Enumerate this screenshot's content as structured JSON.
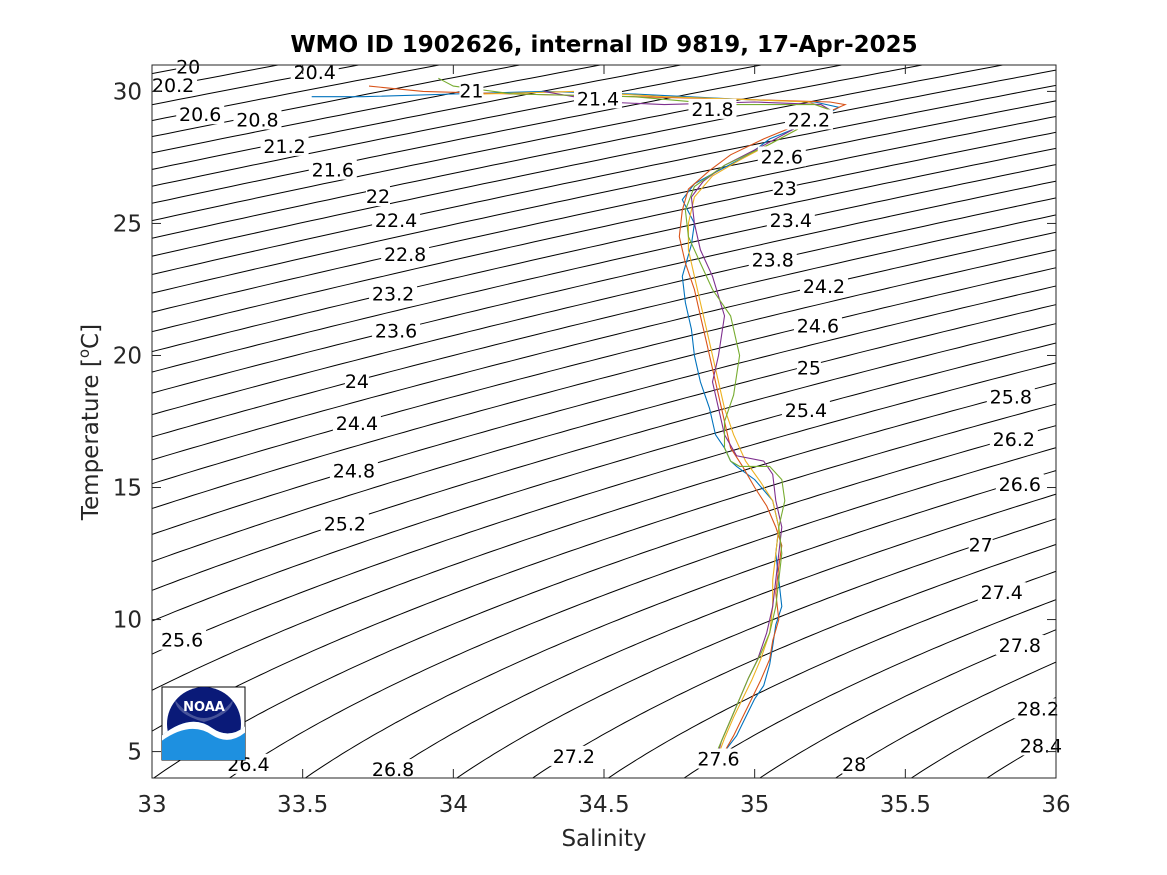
{
  "chart_data": {
    "type": "line",
    "title": "WMO ID 1902626, internal ID 9819, 17-Apr-2025",
    "xlabel": "Salinity",
    "ylabel_main": "Temperature [",
    "ylabel_sup": "o",
    "ylabel_end": "C]",
    "xlim": [
      33,
      36
    ],
    "ylim": [
      4,
      31
    ],
    "xticks": [
      33,
      33.5,
      34,
      34.5,
      35,
      35.5,
      36
    ],
    "xtick_labels": [
      "33",
      "33.5",
      "34",
      "34.5",
      "35",
      "35.5",
      "36"
    ],
    "yticks": [
      5,
      10,
      15,
      20,
      25,
      30
    ],
    "ytick_labels": [
      "5",
      "10",
      "15",
      "20",
      "25",
      "30"
    ],
    "grid": false,
    "logo": {
      "text": "NOAA",
      "colors": {
        "navy": "#0a1a78",
        "light_blue": "#1e90e0",
        "sky": "#23a7f0"
      }
    },
    "density_contours": {
      "levels_start": 20.0,
      "levels_step": 0.2,
      "levels_end": 28.4,
      "color": "#000000",
      "labels": [
        {
          "text": "20",
          "s": 33.12,
          "t": 30.9
        },
        {
          "text": "20.2",
          "s": 33.07,
          "t": 30.2
        },
        {
          "text": "20.4",
          "s": 33.54,
          "t": 30.7
        },
        {
          "text": "20.6",
          "s": 33.16,
          "t": 29.1
        },
        {
          "text": "20.8",
          "s": 33.35,
          "t": 28.9
        },
        {
          "text": "21",
          "s": 34.06,
          "t": 30.0
        },
        {
          "text": "21.2",
          "s": 33.44,
          "t": 27.9
        },
        {
          "text": "21.4",
          "s": 34.48,
          "t": 29.7
        },
        {
          "text": "21.6",
          "s": 33.6,
          "t": 27.0
        },
        {
          "text": "21.8",
          "s": 34.86,
          "t": 29.3
        },
        {
          "text": "22",
          "s": 33.75,
          "t": 26.0
        },
        {
          "text": "22.2",
          "s": 35.18,
          "t": 28.9
        },
        {
          "text": "22.4",
          "s": 33.81,
          "t": 25.1
        },
        {
          "text": "22.6",
          "s": 35.09,
          "t": 27.5
        },
        {
          "text": "22.8",
          "s": 33.84,
          "t": 23.8
        },
        {
          "text": "23",
          "s": 35.1,
          "t": 26.3
        },
        {
          "text": "23.2",
          "s": 33.8,
          "t": 22.3
        },
        {
          "text": "23.4",
          "s": 35.12,
          "t": 25.1
        },
        {
          "text": "23.6",
          "s": 33.81,
          "t": 20.9
        },
        {
          "text": "23.8",
          "s": 35.06,
          "t": 23.6
        },
        {
          "text": "24",
          "s": 33.68,
          "t": 19.0
        },
        {
          "text": "24.2",
          "s": 35.23,
          "t": 22.6
        },
        {
          "text": "24.4",
          "s": 33.68,
          "t": 17.4
        },
        {
          "text": "24.6",
          "s": 35.21,
          "t": 21.1
        },
        {
          "text": "24.8",
          "s": 33.67,
          "t": 15.6
        },
        {
          "text": "25",
          "s": 35.18,
          "t": 19.5
        },
        {
          "text": "25.2",
          "s": 33.64,
          "t": 13.6
        },
        {
          "text": "25.4",
          "s": 35.17,
          "t": 17.9
        },
        {
          "text": "25.6",
          "s": 33.1,
          "t": 9.2
        },
        {
          "text": "25.8",
          "s": 35.85,
          "t": 18.4
        },
        {
          "text": "26.2",
          "s": 35.86,
          "t": 16.8
        },
        {
          "text": "26.4",
          "s": 33.32,
          "t": 4.5
        },
        {
          "text": "26.6",
          "s": 35.88,
          "t": 15.1
        },
        {
          "text": "26.8",
          "s": 33.8,
          "t": 4.3
        },
        {
          "text": "27",
          "s": 35.75,
          "t": 12.8
        },
        {
          "text": "27.2",
          "s": 34.4,
          "t": 4.8
        },
        {
          "text": "27.4",
          "s": 35.82,
          "t": 11.0
        },
        {
          "text": "27.6",
          "s": 34.88,
          "t": 4.7
        },
        {
          "text": "27.8",
          "s": 35.88,
          "t": 9.0
        },
        {
          "text": "28",
          "s": 35.33,
          "t": 4.5
        },
        {
          "text": "28.2",
          "s": 35.94,
          "t": 6.6
        },
        {
          "text": "28.4",
          "s": 35.95,
          "t": 5.2
        }
      ]
    },
    "series": [
      {
        "color": "#0072bd",
        "x": [
          33.53,
          33.7,
          34.0,
          34.3,
          34.6,
          34.95,
          35.2,
          35.28,
          35.2,
          35.05,
          34.98,
          34.88,
          34.8,
          34.76,
          34.8,
          34.79,
          34.76,
          34.77,
          34.79,
          34.8,
          34.82,
          34.85,
          34.87,
          34.9,
          34.92,
          34.94,
          35.0,
          35.06,
          35.08,
          35.07,
          35.08,
          35.09,
          35.07,
          35.06,
          35.05,
          35.03,
          35.0,
          34.97,
          34.94,
          34.9,
          34.87
        ],
        "y": [
          29.8,
          29.8,
          29.9,
          30.0,
          29.9,
          29.7,
          29.6,
          29.4,
          28.9,
          28.2,
          27.6,
          27.0,
          26.5,
          25.9,
          25.0,
          24.2,
          23.0,
          22.0,
          21.0,
          20.0,
          19.0,
          18.0,
          17.0,
          16.5,
          16.0,
          15.8,
          15.3,
          14.5,
          13.5,
          12.5,
          11.5,
          10.5,
          9.8,
          9.0,
          8.3,
          7.5,
          7.0,
          6.3,
          5.6,
          5.0,
          4.5
        ]
      },
      {
        "color": "#d95319",
        "x": [
          33.72,
          33.9,
          34.2,
          34.6,
          34.95,
          35.25,
          35.3,
          35.2,
          35.03,
          34.92,
          34.85,
          34.78,
          34.76,
          34.75,
          34.77,
          34.8,
          34.82,
          34.84,
          34.86,
          34.88,
          34.9,
          34.92,
          34.96,
          35.0,
          35.04,
          35.07,
          35.09,
          35.08,
          35.07,
          35.08,
          35.06,
          35.05,
          35.02,
          34.99,
          34.96,
          34.93,
          34.9,
          34.88
        ],
        "y": [
          30.2,
          30.0,
          29.9,
          29.8,
          29.7,
          29.6,
          29.5,
          29.0,
          28.2,
          27.6,
          27.0,
          26.3,
          25.5,
          24.5,
          23.5,
          22.5,
          21.5,
          20.5,
          19.5,
          18.5,
          17.5,
          16.5,
          15.8,
          15.0,
          14.3,
          13.5,
          12.8,
          12.0,
          11.0,
          10.0,
          9.2,
          8.5,
          7.7,
          7.0,
          6.3,
          5.6,
          5.0,
          4.5
        ]
      },
      {
        "color": "#edb120",
        "x": [
          34.1,
          34.4,
          34.7,
          34.95,
          35.18,
          35.25,
          35.18,
          35.05,
          34.95,
          34.86,
          34.8,
          34.78,
          34.78,
          34.8,
          34.82,
          34.84,
          34.86,
          34.88,
          34.9,
          34.93,
          34.97,
          35.02,
          35.06,
          35.08,
          35.07,
          35.06,
          35.06,
          35.05,
          35.02,
          34.99,
          34.96,
          34.93,
          34.9,
          34.87
        ],
        "y": [
          29.9,
          30.0,
          29.8,
          29.7,
          29.6,
          29.3,
          28.8,
          28.0,
          27.4,
          26.8,
          26.0,
          25.0,
          24.0,
          23.0,
          22.0,
          21.0,
          20.0,
          19.0,
          18.0,
          17.0,
          16.0,
          15.2,
          14.5,
          13.5,
          12.5,
          11.5,
          10.5,
          9.5,
          8.5,
          7.7,
          7.0,
          6.3,
          5.5,
          4.6
        ]
      },
      {
        "color": "#7e2f8e",
        "x": [
          34.3,
          34.5,
          34.7,
          35.0,
          35.22,
          35.25,
          35.15,
          35.02,
          34.9,
          34.83,
          34.79,
          34.8,
          34.82,
          34.86,
          34.9,
          34.88,
          34.86,
          34.88,
          34.9,
          34.94,
          35.03,
          35.06,
          35.07,
          35.09,
          35.08,
          35.07,
          35.06,
          35.04,
          35.01,
          34.98,
          34.95,
          34.92,
          34.89,
          34.87
        ],
        "y": [
          30.0,
          29.6,
          29.5,
          29.6,
          29.5,
          29.3,
          28.7,
          27.9,
          27.2,
          26.6,
          26.0,
          25.0,
          24.0,
          23.0,
          21.5,
          20.0,
          19.0,
          18.0,
          17.0,
          16.2,
          16.0,
          15.5,
          14.5,
          13.5,
          12.5,
          11.5,
          10.5,
          9.5,
          8.5,
          7.8,
          7.0,
          6.2,
          5.4,
          4.6
        ]
      },
      {
        "color": "#77ac30",
        "x": [
          33.95,
          34.0,
          34.2,
          34.6,
          34.9,
          35.2,
          35.25,
          35.18,
          35.05,
          34.9,
          34.8,
          34.77,
          34.78,
          34.82,
          34.86,
          34.92,
          34.95,
          34.93,
          34.9,
          34.9,
          34.92,
          34.95,
          35.05,
          35.09,
          35.1,
          35.08,
          35.09,
          35.08,
          35.07,
          35.05,
          35.02,
          34.98,
          34.95,
          34.92,
          34.89,
          34.86
        ],
        "y": [
          30.5,
          30.2,
          29.9,
          29.8,
          29.5,
          29.5,
          29.3,
          28.8,
          28.0,
          27.2,
          26.4,
          25.5,
          24.5,
          23.5,
          22.5,
          21.5,
          20.0,
          18.5,
          17.5,
          16.5,
          16.0,
          15.8,
          15.8,
          15.3,
          14.5,
          13.5,
          12.5,
          11.5,
          10.5,
          9.5,
          8.7,
          7.8,
          7.0,
          6.2,
          5.4,
          4.6
        ]
      }
    ]
  }
}
